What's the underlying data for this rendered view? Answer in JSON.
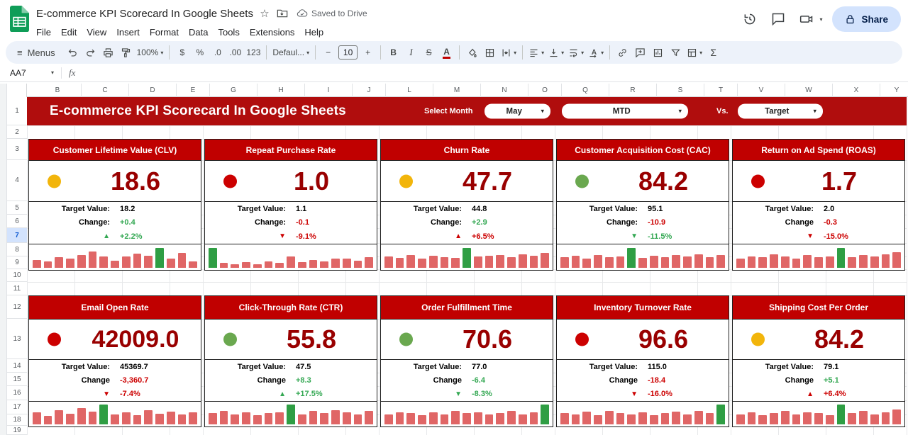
{
  "titlebar": {
    "doc_title": "E-commerce KPI Scorecard In Google Sheets",
    "saved_status": "Saved to Drive",
    "share_label": "Share"
  },
  "menubar": {
    "items": [
      "File",
      "Edit",
      "View",
      "Insert",
      "Format",
      "Data",
      "Tools",
      "Extensions",
      "Help"
    ]
  },
  "toolbar": {
    "menus_label": "Menus",
    "items": [
      {
        "type": "icon",
        "name": "undo"
      },
      {
        "type": "icon",
        "name": "redo"
      },
      {
        "type": "icon",
        "name": "print"
      },
      {
        "type": "icon",
        "name": "paint-format"
      },
      {
        "type": "dropdown",
        "name": "zoom",
        "value": "100%"
      },
      {
        "type": "divider"
      },
      {
        "type": "icon",
        "name": "format-currency",
        "text": "$"
      },
      {
        "type": "icon",
        "name": "format-percent",
        "text": "%"
      },
      {
        "type": "icon",
        "name": "decrease-decimals",
        "text": ".0"
      },
      {
        "type": "icon",
        "name": "increase-decimals",
        "text": ".00"
      },
      {
        "type": "icon",
        "name": "number-format",
        "text": "123"
      },
      {
        "type": "divider"
      },
      {
        "type": "dropdown",
        "name": "font-family",
        "value": "Defaul..."
      },
      {
        "type": "divider"
      },
      {
        "type": "icon",
        "name": "decrease-font-size",
        "text": "−"
      },
      {
        "type": "input",
        "name": "font-size",
        "value": "10"
      },
      {
        "type": "icon",
        "name": "increase-font-size",
        "text": "+"
      },
      {
        "type": "divider"
      },
      {
        "type": "icon",
        "name": "bold",
        "text": "B"
      },
      {
        "type": "icon",
        "name": "italic",
        "text": "I"
      },
      {
        "type": "icon",
        "name": "strikethrough",
        "text": "S"
      },
      {
        "type": "icon",
        "name": "text-color",
        "text": "A"
      },
      {
        "type": "divider"
      },
      {
        "type": "icon",
        "name": "fill-color"
      },
      {
        "type": "icon",
        "name": "borders"
      },
      {
        "type": "icon",
        "name": "merge-cells",
        "caret": true
      },
      {
        "type": "divider"
      },
      {
        "type": "icon",
        "name": "horizontal-align",
        "caret": true
      },
      {
        "type": "icon",
        "name": "vertical-align",
        "caret": true
      },
      {
        "type": "icon",
        "name": "text-wrap",
        "caret": true
      },
      {
        "type": "icon",
        "name": "text-rotation",
        "caret": true
      },
      {
        "type": "divider"
      },
      {
        "type": "icon",
        "name": "insert-link"
      },
      {
        "type": "icon",
        "name": "insert-comment"
      },
      {
        "type": "icon",
        "name": "insert-chart"
      },
      {
        "type": "icon",
        "name": "create-filter"
      },
      {
        "type": "icon",
        "name": "table-views",
        "caret": true
      },
      {
        "type": "icon",
        "name": "functions",
        "text": "Σ"
      }
    ]
  },
  "formula_bar": {
    "cell_ref": "AA7",
    "fx_label": "fx"
  },
  "grid": {
    "columns": [
      "B",
      "C",
      "D",
      "E",
      "G",
      "H",
      "I",
      "J",
      "L",
      "M",
      "N",
      "O",
      "Q",
      "R",
      "S",
      "T",
      "V",
      "W",
      "X",
      "Y"
    ],
    "rows": [
      "1",
      "2",
      "3",
      "4",
      "5",
      "6",
      "7",
      "8",
      "9",
      "10",
      "11",
      "12",
      "13",
      "14",
      "15",
      "16",
      "17",
      "18",
      "19"
    ],
    "selected_row": "7"
  },
  "banner": {
    "title": "E-commerce KPI Scorecard In Google Sheets",
    "select_month_label": "Select Month",
    "month_value": "May",
    "period_value": "MTD",
    "vs_label": "Vs.",
    "compare_value": "Target"
  },
  "colors": {
    "banner": "#b00d0d",
    "card_header": "#c00000",
    "kpi_value": "#990000",
    "positive": "#34a853",
    "negative": "#cc0000",
    "spark_bar": "#e06666",
    "spark_highlight": "#2f9e44",
    "dot_yellow": "#f2b50b",
    "dot_red": "#cc0000",
    "dot_green": "#6aa84f"
  },
  "kpi_rows": [
    [
      {
        "title": "Customer Lifetime Value (CLV)",
        "value": "18.6",
        "dot": "yellow",
        "target_label": "Target Value:",
        "target_value": "18.2",
        "change_label": "Change:",
        "change_value": "+0.4",
        "change_tone": "green",
        "pct_value": "+2.2%",
        "pct_dir": "up",
        "pct_tone": "green",
        "spark": {
          "values": [
            38,
            30,
            50,
            42,
            60,
            78,
            55,
            35,
            52,
            68,
            58,
            95,
            45,
            70,
            30
          ],
          "highlight": 11
        }
      },
      {
        "title": "Repeat Purchase Rate",
        "value": "1.0",
        "dot": "red",
        "target_label": "Target Value:",
        "target_value": "1.1",
        "change_label": "Change:",
        "change_value": "-0.1",
        "change_tone": "red",
        "pct_value": "-9.1%",
        "pct_dir": "down",
        "pct_tone": "red",
        "spark": {
          "values": [
            95,
            22,
            16,
            26,
            18,
            30,
            24,
            55,
            28,
            36,
            30,
            44,
            42,
            34,
            50
          ],
          "highlight": 0
        }
      },
      {
        "title": "Churn Rate",
        "value": "47.7",
        "dot": "yellow",
        "target_label": "Target Value:",
        "target_value": "44.8",
        "change_label": "Change:",
        "change_value": "+2.9",
        "change_tone": "green",
        "pct_value": "+6.5%",
        "pct_dir": "up",
        "pct_tone": "red",
        "spark": {
          "values": [
            55,
            48,
            60,
            44,
            56,
            50,
            46,
            95,
            52,
            56,
            60,
            50,
            64,
            58,
            70
          ],
          "highlight": 7
        }
      },
      {
        "title": "Customer Acquisition Cost (CAC)",
        "value": "84.2",
        "dot": "green",
        "target_label": "Target Value:",
        "target_value": "95.1",
        "change_label": "Change:",
        "change_value": "-10.9",
        "change_tone": "red",
        "pct_value": "-11.5%",
        "pct_dir": "down",
        "pct_tone": "green",
        "spark": {
          "values": [
            50,
            56,
            44,
            60,
            50,
            54,
            95,
            46,
            56,
            50,
            60,
            54,
            64,
            50,
            60
          ],
          "highlight": 6
        }
      },
      {
        "title": "Return on Ad Spend (ROAS)",
        "value": "1.7",
        "dot": "red",
        "target_label": "Target Value:",
        "target_value": "2.0",
        "change_label": "Change",
        "change_value": "-0.3",
        "change_tone": "red",
        "pct_value": "-15.0%",
        "pct_dir": "down",
        "pct_tone": "red",
        "spark": {
          "values": [
            45,
            55,
            50,
            62,
            55,
            45,
            60,
            50,
            55,
            95,
            50,
            60,
            55,
            65,
            75
          ],
          "highlight": 9
        }
      }
    ],
    [
      {
        "title": "Email Open Rate",
        "value": "42009.0",
        "dot": "red",
        "target_label": "Target Value:",
        "target_value": "45369.7",
        "change_label": "Change",
        "change_value": "-3,360.7",
        "change_tone": "red",
        "pct_value": "-7.4%",
        "pct_dir": "down",
        "pct_tone": "red",
        "spark": {
          "values": [
            60,
            42,
            70,
            52,
            80,
            62,
            95,
            48,
            58,
            44,
            68,
            52,
            62,
            48,
            58
          ],
          "highlight": 6
        }
      },
      {
        "title": "Click-Through Rate (CTR)",
        "value": "55.8",
        "dot": "green",
        "target_label": "Target Value:",
        "target_value": "47.5",
        "change_label": "Change",
        "change_value": "+8.3",
        "change_tone": "green",
        "pct_value": "+17.5%",
        "pct_dir": "up",
        "pct_tone": "green",
        "spark": {
          "values": [
            55,
            65,
            48,
            60,
            44,
            56,
            60,
            95,
            50,
            66,
            56,
            70,
            60,
            50,
            66
          ],
          "highlight": 7
        }
      },
      {
        "title": "Order Fulfillment Time",
        "value": "70.6",
        "dot": "green",
        "target_label": "Target Value:",
        "target_value": "77.0",
        "change_label": "Change",
        "change_value": "-6.4",
        "change_tone": "green",
        "pct_value": "-8.3%",
        "pct_dir": "down",
        "pct_tone": "green",
        "spark": {
          "values": [
            50,
            60,
            56,
            44,
            60,
            50,
            66,
            56,
            60,
            50,
            56,
            66,
            50,
            60,
            95
          ],
          "highlight": 14
        }
      },
      {
        "title": "Inventory Turnover Rate",
        "value": "96.6",
        "dot": "red",
        "target_label": "Target Value:",
        "target_value": "115.0",
        "change_label": "Change",
        "change_value": "-18.4",
        "change_tone": "red",
        "pct_value": "-16.0%",
        "pct_dir": "down",
        "pct_tone": "red",
        "spark": {
          "values": [
            56,
            50,
            62,
            46,
            66,
            56,
            50,
            60,
            46,
            56,
            62,
            50,
            66,
            56,
            95
          ],
          "highlight": 14
        }
      },
      {
        "title": "Shipping Cost Per Order",
        "value": "84.2",
        "dot": "yellow",
        "target_label": "Target Value:",
        "target_value": "79.1",
        "change_label": "Change",
        "change_value": "+5.1",
        "change_tone": "green",
        "pct_value": "+6.4%",
        "pct_dir": "up",
        "pct_tone": "red",
        "spark": {
          "values": [
            50,
            60,
            46,
            56,
            66,
            50,
            60,
            56,
            46,
            95,
            56,
            66,
            50,
            60,
            72
          ],
          "highlight": 9
        }
      }
    ]
  ]
}
